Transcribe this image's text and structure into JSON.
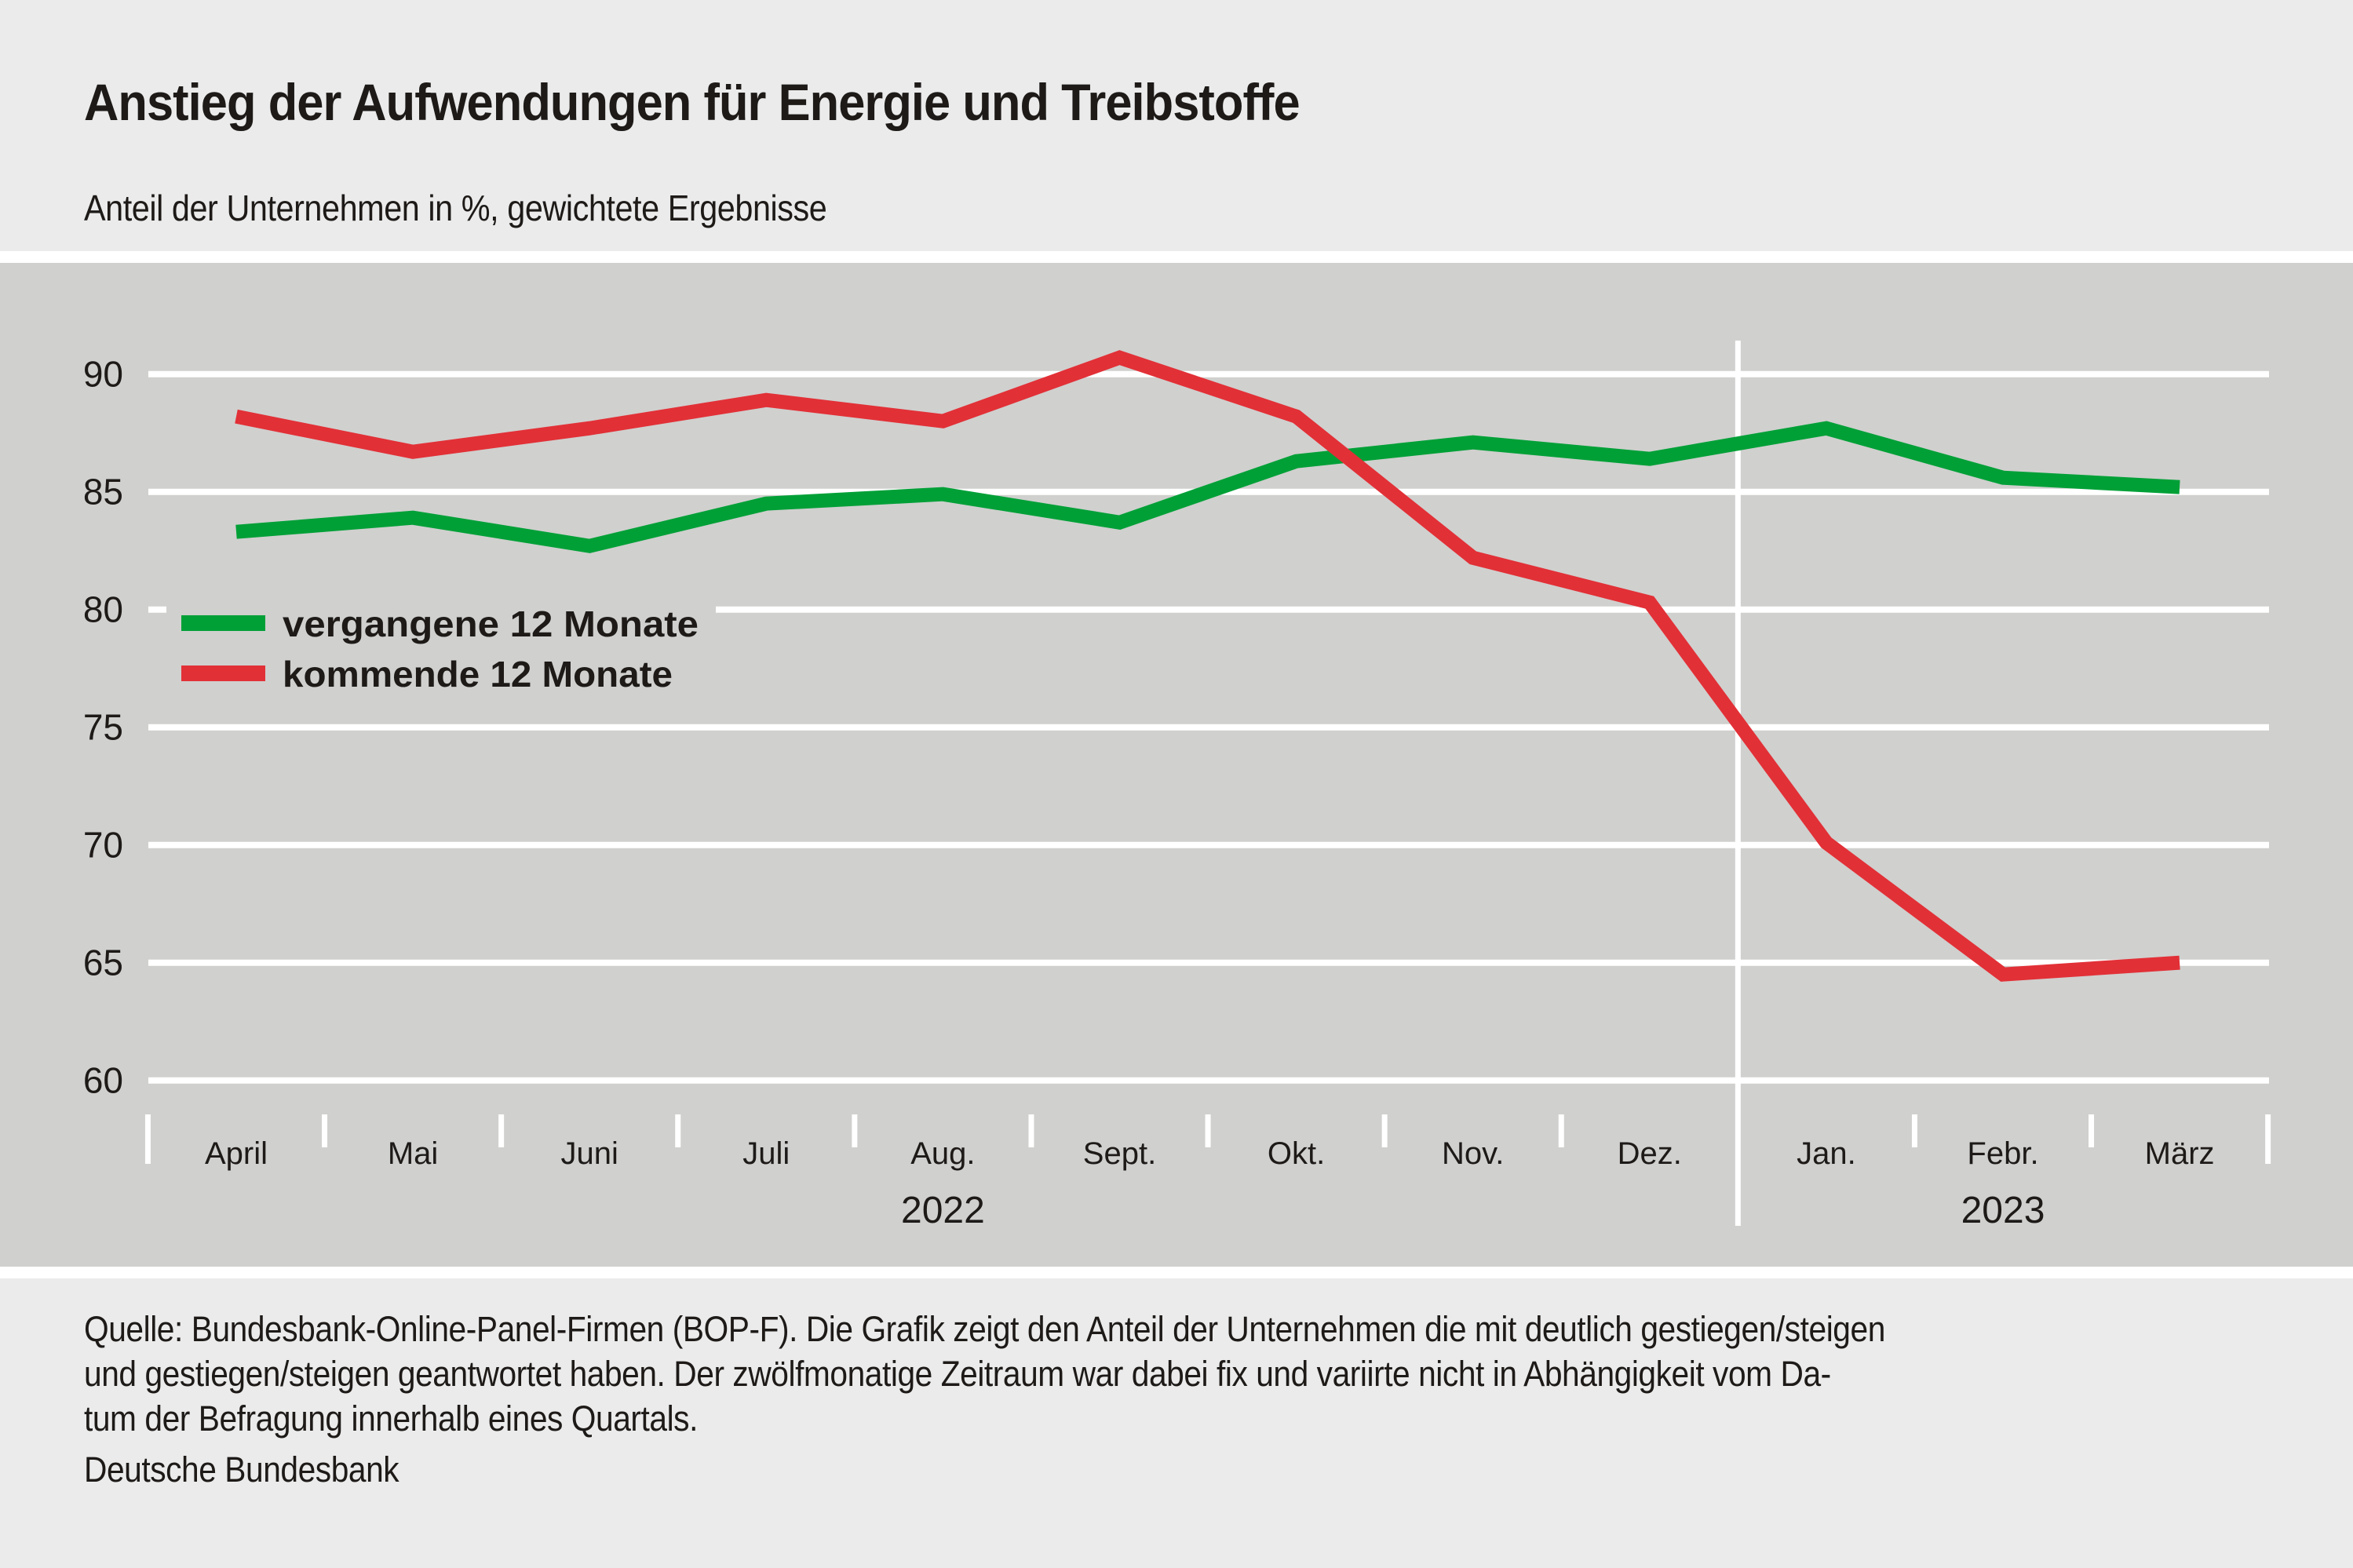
{
  "header": {
    "title": "Anstieg der Aufwendungen für Energie und Treibstoffe",
    "subtitle": "Anteil der Unternehmen in %, gewichtete Ergebnisse"
  },
  "footer": {
    "note_lines": [
      "Quelle: Bundesbank-Online-Panel-Firmen (BOP-F). Die Grafik zeigt den Anteil der Unternehmen die mit deutlich gestiegen/steigen",
      "und gestiegen/steigen geantwortet haben. Der zwölfmonatige Zeitraum war dabei fix und variirte nicht in Abhängigkeit vom Da-",
      "tum der Befragung innerhalb eines Quartals."
    ],
    "source": "Deutsche Bundesbank"
  },
  "colors": {
    "header_bg": "#ebebeb",
    "panel_bg": "#d0d0ce",
    "grid": "#ffffff",
    "green": "#00a037",
    "red": "#e23037",
    "text": "#1d1a18"
  },
  "chart_data": {
    "type": "line",
    "title": "Anstieg der Aufwendungen für Energie und Treibstoffe",
    "subtitle": "Anteil der Unternehmen in %, gewichtete Ergebnisse",
    "xlabel": "",
    "ylabel": "",
    "categories": [
      "April",
      "Mai",
      "Juni",
      "Juli",
      "Aug.",
      "Sept.",
      "Okt.",
      "Nov.",
      "Dez.",
      "Jan.",
      "Febr.",
      "März"
    ],
    "year_groups": [
      {
        "label": "2022",
        "start": 0,
        "end": 8
      },
      {
        "label": "2023",
        "start": 9,
        "end": 11
      }
    ],
    "ylim": [
      60,
      90
    ],
    "yticks": [
      60,
      65,
      70,
      75,
      80,
      85,
      90
    ],
    "grid": true,
    "legend_position": "left-middle",
    "series": [
      {
        "name": "vergangene 12 Monate",
        "color": "#00a037",
        "values": [
          83.3,
          83.9,
          82.7,
          84.5,
          84.9,
          83.7,
          86.3,
          87.1,
          86.4,
          87.7,
          85.6,
          85.2
        ]
      },
      {
        "name": "kommende 12 Monate",
        "color": "#e23037",
        "values": [
          88.2,
          86.7,
          87.7,
          88.9,
          88.0,
          90.7,
          88.2,
          82.2,
          80.3,
          70.1,
          64.5,
          65.0
        ]
      }
    ]
  }
}
